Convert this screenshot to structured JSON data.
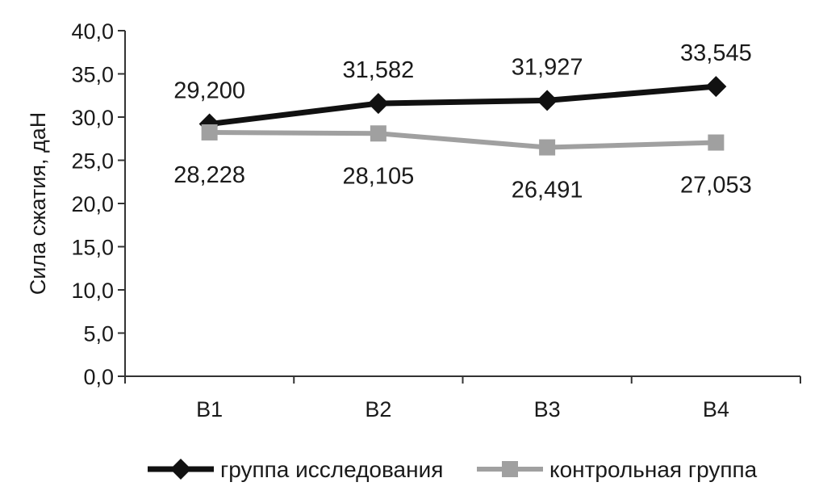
{
  "chart_data": {
    "type": "line",
    "categories": [
      "B1",
      "B2",
      "B3",
      "B4"
    ],
    "series": [
      {
        "name": "группа исследования",
        "values": [
          29.2,
          31.582,
          31.927,
          33.545
        ],
        "value_labels": [
          "29,200",
          "31,582",
          "31,927",
          "33,545"
        ],
        "color": "#111111",
        "marker": "diamond",
        "label_position": "above"
      },
      {
        "name": "контрольная группа",
        "values": [
          28.228,
          28.105,
          26.491,
          27.053
        ],
        "value_labels": [
          "28,228",
          "28,105",
          "26,491",
          "27,053"
        ],
        "color": "#a0a0a0",
        "marker": "square",
        "label_position": "below"
      }
    ],
    "ylabel": "Сила сжатия, даН",
    "xlabel": "",
    "ylim": [
      0,
      40
    ],
    "y_ticks": [
      0,
      5,
      10,
      15,
      20,
      25,
      30,
      35,
      40
    ],
    "y_tick_labels": [
      "0,0",
      "5,0",
      "10,0",
      "15,0",
      "20,0",
      "25,0",
      "30,0",
      "35,0",
      "40,0"
    ],
    "grid": false,
    "legend_position": "bottom"
  }
}
